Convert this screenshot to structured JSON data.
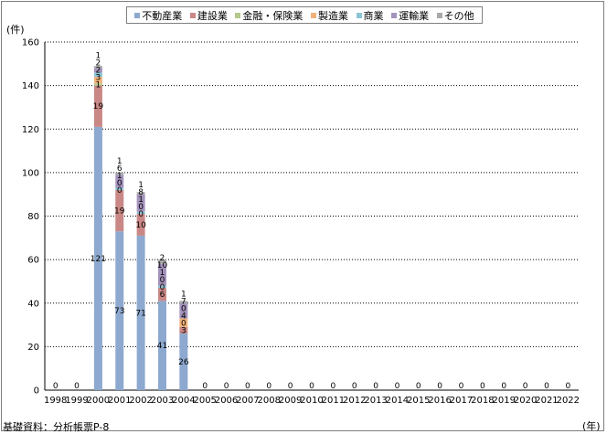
{
  "chart_data": {
    "type": "bar",
    "stacked": true,
    "ylabel": "(件)",
    "xlabel": "(年)",
    "ylim": [
      0,
      160
    ],
    "yticks": [
      0,
      20,
      40,
      60,
      80,
      100,
      120,
      140,
      160
    ],
    "grid": true,
    "legend_position": "top",
    "categories": [
      "1998",
      "1999",
      "2000",
      "2001",
      "2002",
      "2003",
      "2004",
      "2005",
      "2006",
      "2007",
      "2008",
      "2009",
      "2010",
      "2011",
      "2012",
      "2013",
      "2014",
      "2015",
      "2016",
      "2017",
      "2018",
      "2019",
      "2020",
      "2021",
      "2022"
    ],
    "series": [
      {
        "name": "不動産業",
        "color": "#8ea9cf",
        "values": [
          0,
          0,
          121,
          73,
          71,
          41,
          26,
          0,
          0,
          0,
          0,
          0,
          0,
          0,
          0,
          0,
          0,
          0,
          0,
          0,
          0,
          0,
          0,
          0,
          0
        ]
      },
      {
        "name": "建設業",
        "color": "#c98886",
        "values": [
          0,
          0,
          19,
          19,
          10,
          6,
          3,
          0,
          0,
          0,
          0,
          0,
          0,
          0,
          0,
          0,
          0,
          0,
          0,
          0,
          0,
          0,
          0,
          0,
          0
        ]
      },
      {
        "name": "金融・保険業",
        "color": "#b4c98b",
        "values": [
          0,
          0,
          1,
          0,
          0,
          0,
          0,
          0,
          0,
          0,
          0,
          0,
          0,
          0,
          0,
          0,
          0,
          0,
          0,
          0,
          0,
          0,
          0,
          0,
          0
        ]
      },
      {
        "name": "製造業",
        "color": "#f0b27a",
        "values": [
          0,
          0,
          3,
          0,
          0,
          0,
          4,
          0,
          0,
          0,
          0,
          0,
          0,
          0,
          0,
          0,
          0,
          0,
          0,
          0,
          0,
          0,
          0,
          0,
          0
        ]
      },
      {
        "name": "商業",
        "color": "#8cc4d6",
        "values": [
          0,
          0,
          2,
          1,
          1,
          1,
          0,
          0,
          0,
          0,
          0,
          0,
          0,
          0,
          0,
          0,
          0,
          0,
          0,
          0,
          0,
          0,
          0,
          0,
          0
        ]
      },
      {
        "name": "運輸業",
        "color": "#a493bc",
        "values": [
          0,
          0,
          2,
          6,
          8,
          10,
          7,
          0,
          0,
          0,
          0,
          0,
          0,
          0,
          0,
          0,
          0,
          0,
          0,
          0,
          0,
          0,
          0,
          0,
          0
        ]
      },
      {
        "name": "その他",
        "color": "#a9a9a9",
        "values": [
          0,
          0,
          1,
          1,
          1,
          2,
          1,
          0,
          0,
          0,
          0,
          0,
          0,
          0,
          0,
          0,
          0,
          0,
          0,
          0,
          0,
          0,
          0,
          0,
          0
        ]
      }
    ],
    "zero_labels": "0"
  },
  "source": "基礎資料：分析帳票P-8"
}
